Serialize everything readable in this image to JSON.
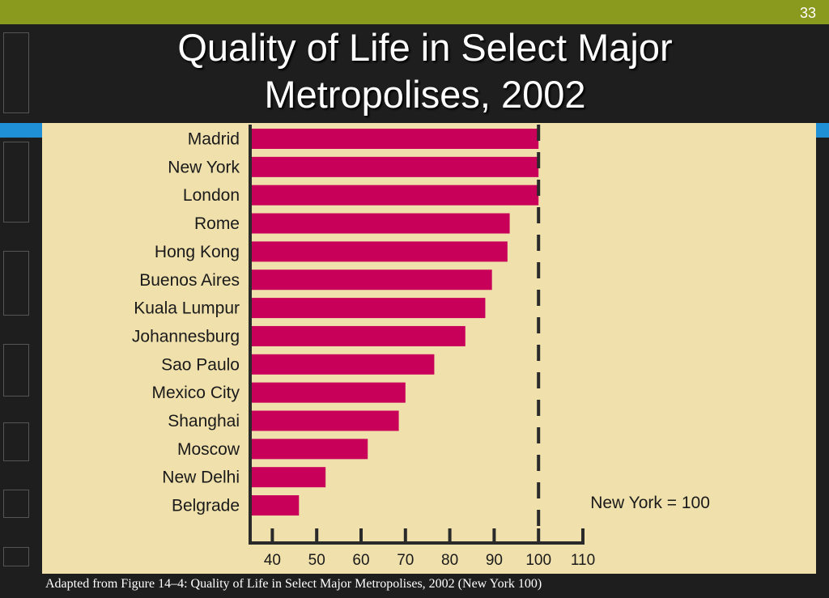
{
  "slide": {
    "number": "33",
    "caption": "Adapted from Figure 14–4: Quality of Life in Select Major Metropolises, 2002 (New York  100)"
  },
  "colors": {
    "header_bar": "#8a9a1e",
    "background": "#1e1e1e",
    "panel": "#efe0ac",
    "bar": "#c8005a",
    "accent_blue": "#1f8fd6"
  },
  "chart_data": {
    "type": "bar",
    "orientation": "horizontal",
    "title": "Quality of Life in Select Major Metropolises, 2002",
    "title_lines": [
      "Quality of Life in Select Major",
      "Metropolises, 2002"
    ],
    "categories": [
      "Madrid",
      "New York",
      "London",
      "Rome",
      "Hong Kong",
      "Buenos Aires",
      "Kuala Lumpur",
      "Johannesburg",
      "Sao Paulo",
      "Mexico City",
      "Shanghai",
      "Moscow",
      "New Delhi",
      "Belgrade"
    ],
    "values": [
      100,
      100,
      100,
      93.5,
      93,
      89.5,
      88,
      83.5,
      76.5,
      70,
      68.5,
      61.5,
      52,
      46
    ],
    "xlim": [
      35,
      110
    ],
    "xticks": [
      40,
      50,
      60,
      70,
      80,
      90,
      100,
      110
    ],
    "reference_line": {
      "value": 100,
      "label": "New York = 100",
      "style": "dashed"
    },
    "xlabel": "",
    "ylabel": "",
    "grid": false,
    "legend": "none"
  }
}
